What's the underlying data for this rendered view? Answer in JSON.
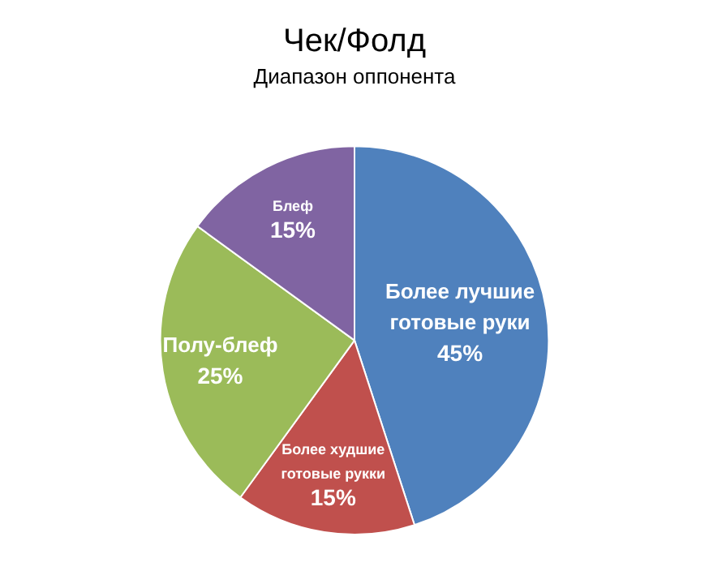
{
  "chart_data": {
    "type": "pie",
    "title": "Чек/Фолд",
    "subtitle": "Диапазон оппонента",
    "categories": [
      "Более лучшие готовые руки",
      "Более худшие готовые рукки",
      "Полу-блеф",
      "Блеф"
    ],
    "values": [
      45,
      15,
      25,
      15
    ],
    "value_labels": [
      "45%",
      "15%",
      "25%",
      "15%"
    ],
    "colors": [
      "#4f81bd",
      "#c0504d",
      "#9bbb59",
      "#8064a2"
    ],
    "legend": false
  }
}
